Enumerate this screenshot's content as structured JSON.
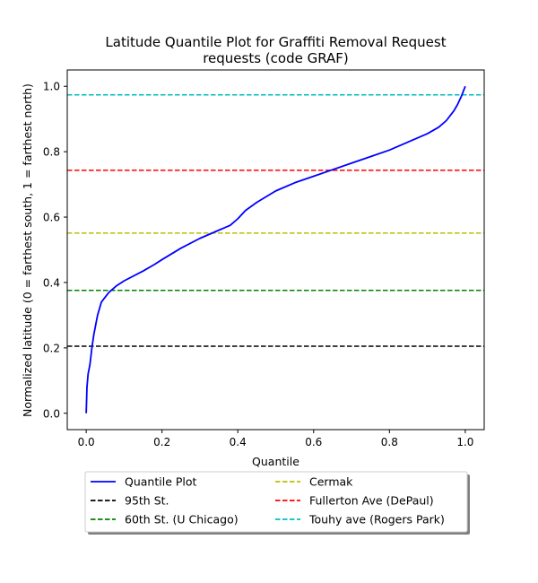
{
  "chart_data": {
    "type": "line",
    "title_line1": "Latitude Quantile Plot for Graffiti Removal Request",
    "title_line2": "requests (code GRAF)",
    "xlabel": "Quantile",
    "ylabel": "Normalized latitude (0 = farthest south, 1 = farthest north)",
    "xlim": [
      -0.05,
      1.05
    ],
    "ylim": [
      -0.05,
      1.05
    ],
    "xticks": [
      "0.0",
      "0.2",
      "0.4",
      "0.6",
      "0.8",
      "1.0"
    ],
    "yticks": [
      "0.0",
      "0.2",
      "0.4",
      "0.6",
      "0.8",
      "1.0"
    ],
    "grid": false,
    "legend_position": "below plot, two columns",
    "series": [
      {
        "name": "Quantile Plot",
        "color": "#0000ff",
        "style": "solid",
        "x": [
          0.0,
          0.002,
          0.005,
          0.01,
          0.015,
          0.02,
          0.025,
          0.03,
          0.04,
          0.05,
          0.06,
          0.08,
          0.1,
          0.15,
          0.18,
          0.2,
          0.25,
          0.3,
          0.35,
          0.38,
          0.4,
          0.42,
          0.45,
          0.5,
          0.55,
          0.6,
          0.65,
          0.7,
          0.75,
          0.8,
          0.85,
          0.9,
          0.93,
          0.95,
          0.97,
          0.98,
          0.99,
          1.0
        ],
        "y": [
          0.0,
          0.08,
          0.12,
          0.15,
          0.2,
          0.24,
          0.27,
          0.3,
          0.34,
          0.355,
          0.37,
          0.39,
          0.405,
          0.435,
          0.455,
          0.47,
          0.505,
          0.535,
          0.56,
          0.575,
          0.595,
          0.62,
          0.645,
          0.68,
          0.705,
          0.725,
          0.745,
          0.765,
          0.785,
          0.805,
          0.83,
          0.855,
          0.875,
          0.895,
          0.925,
          0.945,
          0.97,
          1.0
        ]
      },
      {
        "name": "95th St.",
        "color": "#000000",
        "style": "dashed",
        "hline": 0.205
      },
      {
        "name": "60th St. (U Chicago)",
        "color": "#008000",
        "style": "dashed",
        "hline": 0.376
      },
      {
        "name": "Cermak",
        "color": "#bfbf00",
        "style": "dashed",
        "hline": 0.551
      },
      {
        "name": "Fullerton Ave (DePaul)",
        "color": "#ff0000",
        "style": "dashed",
        "hline": 0.743
      },
      {
        "name": "Touhy ave (Rogers Park)",
        "color": "#00bfbf",
        "style": "dashed",
        "hline": 0.974
      }
    ]
  }
}
